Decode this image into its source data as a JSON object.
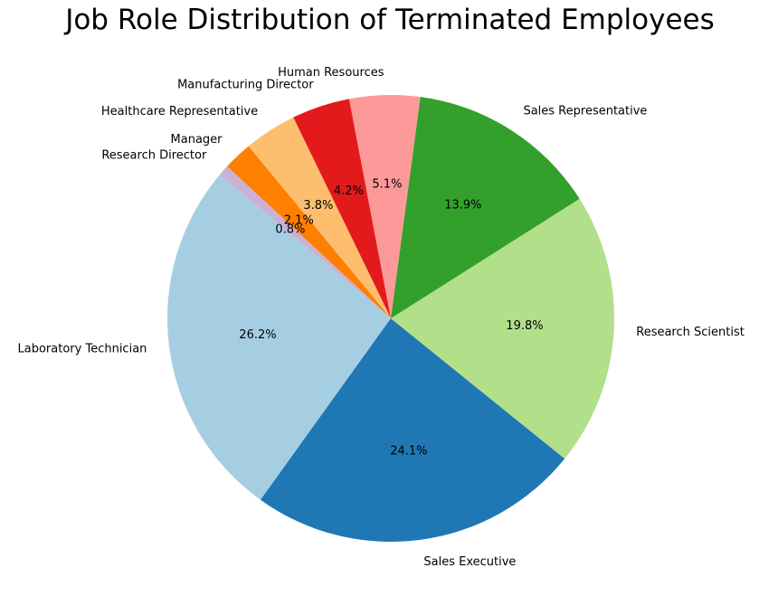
{
  "chart_data": {
    "type": "pie",
    "title": "Job Role Distribution of Terminated Employees",
    "start_angle_deg": 140,
    "direction": "counterclockwise",
    "slices": [
      {
        "label": "Laboratory Technician",
        "value": 26.2,
        "pct_label": "26.2%",
        "color": "#a6cee3"
      },
      {
        "label": "Sales Executive",
        "value": 24.1,
        "pct_label": "24.1%",
        "color": "#1f78b4"
      },
      {
        "label": "Research Scientist",
        "value": 19.8,
        "pct_label": "19.8%",
        "color": "#b2df8a"
      },
      {
        "label": "Sales Representative",
        "value": 13.9,
        "pct_label": "13.9%",
        "color": "#33a02c"
      },
      {
        "label": "Human Resources",
        "value": 5.1,
        "pct_label": "5.1%",
        "color": "#fb9a99"
      },
      {
        "label": "Manufacturing Director",
        "value": 4.2,
        "pct_label": "4.2%",
        "color": "#e31a1c"
      },
      {
        "label": "Healthcare Representative",
        "value": 3.8,
        "pct_label": "3.8%",
        "color": "#fdbf6f"
      },
      {
        "label": "Manager",
        "value": 2.1,
        "pct_label": "2.1%",
        "color": "#ff7f00"
      },
      {
        "label": "Research Director",
        "value": 0.8,
        "pct_label": "0.8%",
        "color": "#cab2d6"
      }
    ]
  }
}
